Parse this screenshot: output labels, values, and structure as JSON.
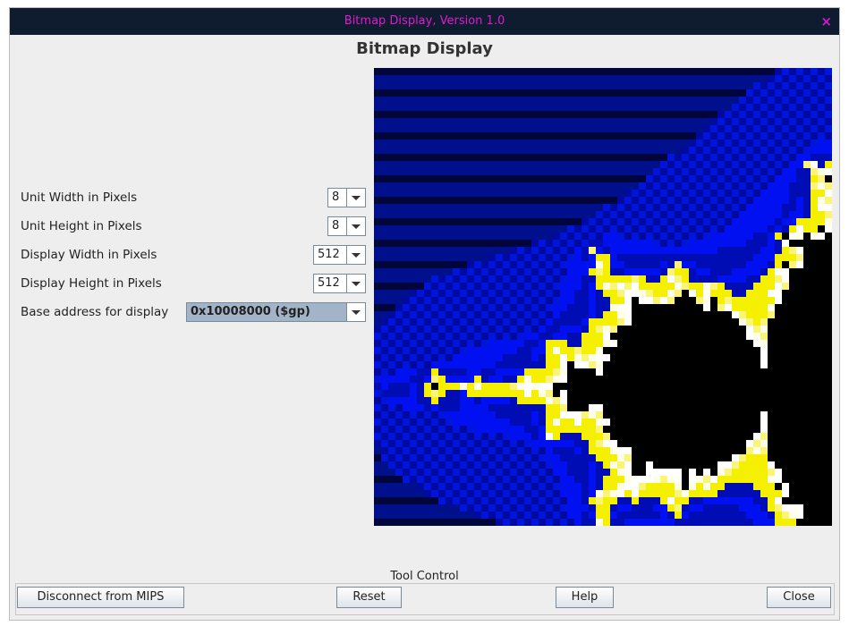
{
  "window": {
    "title": "Bitmap Display, Version 1.0",
    "close_glyph": "×",
    "title_color": "#e01ad0",
    "titlebar_color": "#0f1b2e"
  },
  "heading": "Bitmap Display",
  "settings": [
    {
      "label": "Unit Width in Pixels",
      "value": "8"
    },
    {
      "label": "Unit Height in Pixels",
      "value": "8"
    },
    {
      "label": "Display Width in Pixels",
      "value": "512"
    },
    {
      "label": "Display Height in Pixels",
      "value": "512"
    },
    {
      "label": "Base address for display",
      "value": "0x10008000 ($gp)"
    }
  ],
  "display": {
    "content": "mandelbrot-fractal",
    "colors": {
      "set": "#000000",
      "edge": "#ffffff",
      "near": "#f5f000",
      "far": "#0010f0",
      "outer": "#000a40"
    }
  },
  "tool_control": {
    "title": "Tool Control",
    "buttons": [
      "Disconnect from MIPS",
      "Reset",
      "Help",
      "Close"
    ]
  }
}
